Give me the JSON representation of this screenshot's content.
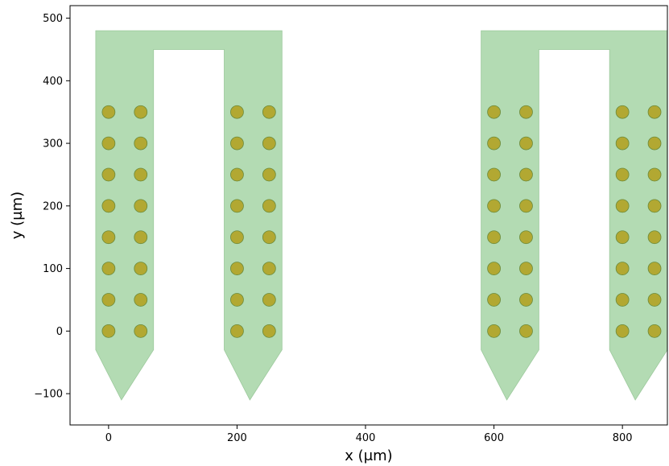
{
  "chart_data": {
    "type": "scatter",
    "title": "",
    "xlabel": "x (μm)",
    "ylabel": "y (μm)",
    "xlim": [
      -60,
      870
    ],
    "ylim": [
      -150,
      520
    ],
    "xticks": [
      0,
      200,
      400,
      600,
      800
    ],
    "yticks": [
      -100,
      0,
      100,
      200,
      300,
      400,
      500
    ],
    "xtick_labels": [
      "0",
      "200",
      "400",
      "600",
      "800"
    ],
    "ytick_labels": [
      "−100",
      "0",
      "100",
      "200",
      "300",
      "400",
      "500"
    ],
    "grid": false,
    "colors": {
      "probe_fill": "#b3dbb3",
      "probe_edge": "#9cc99c",
      "contact_fill": "#b2a832",
      "contact_edge": "#6b8a3a"
    },
    "probe_outlines": [
      [
        [
          -20,
          480
        ],
        [
          270,
          480
        ],
        [
          270,
          -30
        ],
        [
          220,
          -110
        ],
        [
          180,
          -30
        ],
        [
          180,
          450
        ],
        [
          70,
          450
        ],
        [
          70,
          -30
        ],
        [
          20,
          -110
        ],
        [
          -20,
          -30
        ]
      ],
      [
        [
          580,
          480
        ],
        [
          870,
          480
        ],
        [
          870,
          -30
        ],
        [
          820,
          -110
        ],
        [
          780,
          -30
        ],
        [
          780,
          450
        ],
        [
          670,
          450
        ],
        [
          670,
          -30
        ],
        [
          620,
          -110
        ],
        [
          580,
          -30
        ]
      ]
    ],
    "contact_x": [
      0,
      50,
      200,
      250,
      600,
      650,
      800,
      850
    ],
    "contact_y": [
      0,
      50,
      100,
      150,
      200,
      250,
      300,
      350
    ],
    "contact_radius": 10
  }
}
